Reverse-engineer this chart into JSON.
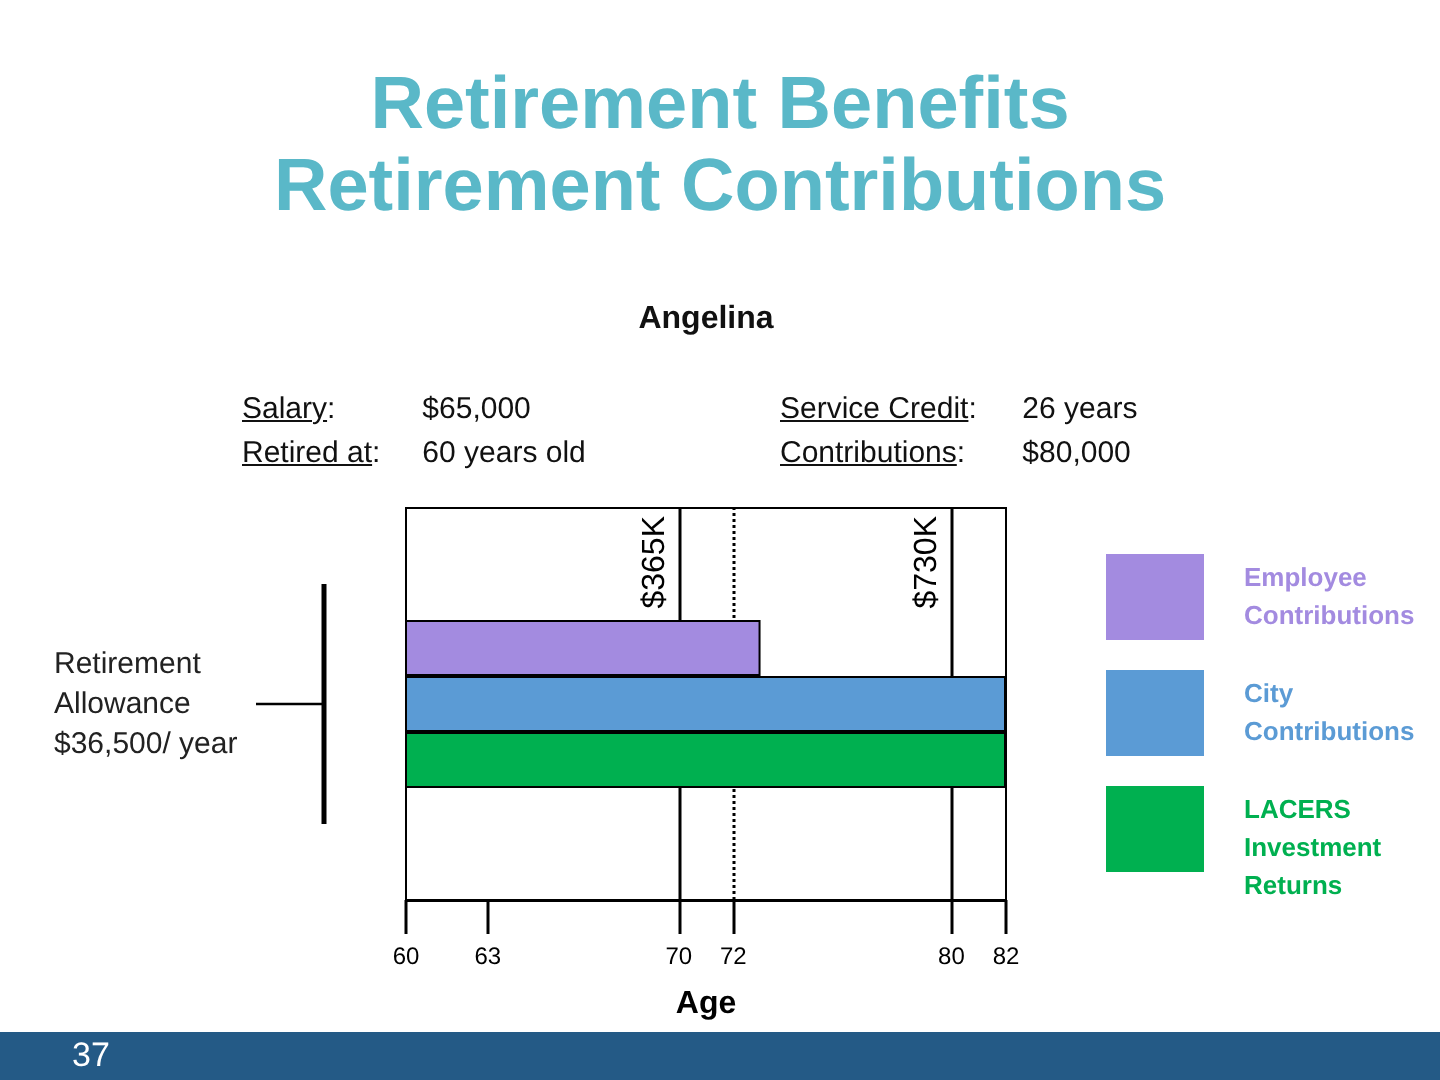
{
  "chart_data": {
    "type": "bar",
    "title": "Retirement Benefits",
    "subtitle": "Retirement Contributions",
    "xlabel": "Age",
    "orientation": "horizontal",
    "categories": [
      "Retirement Allowance $36,500/ year"
    ],
    "series": [
      {
        "name": "Employee Contributions",
        "color": "#a38be0",
        "values": [
          73
        ]
      },
      {
        "name": "City Contributions",
        "color": "#5b9bd5",
        "values": [
          82
        ]
      },
      {
        "name": "LACERS Investment Returns",
        "color": "#00b050",
        "values": [
          82
        ]
      }
    ],
    "xlim": [
      60,
      82
    ],
    "xticks": [
      60,
      63,
      70,
      72,
      80,
      82
    ],
    "ref_lines": [
      {
        "axis": "x",
        "value": 70,
        "label": "$365K"
      },
      {
        "axis": "x",
        "value": 72,
        "line_style": "dotted"
      },
      {
        "axis": "x",
        "value": 80,
        "label": "$730K"
      }
    ],
    "legend": "right",
    "annotations": [
      "Angelina",
      "Salary: $65,000",
      "Retired at: 60 years old",
      "Service Credit: 26 years",
      "Contributions: $80,000",
      "37"
    ]
  }
}
